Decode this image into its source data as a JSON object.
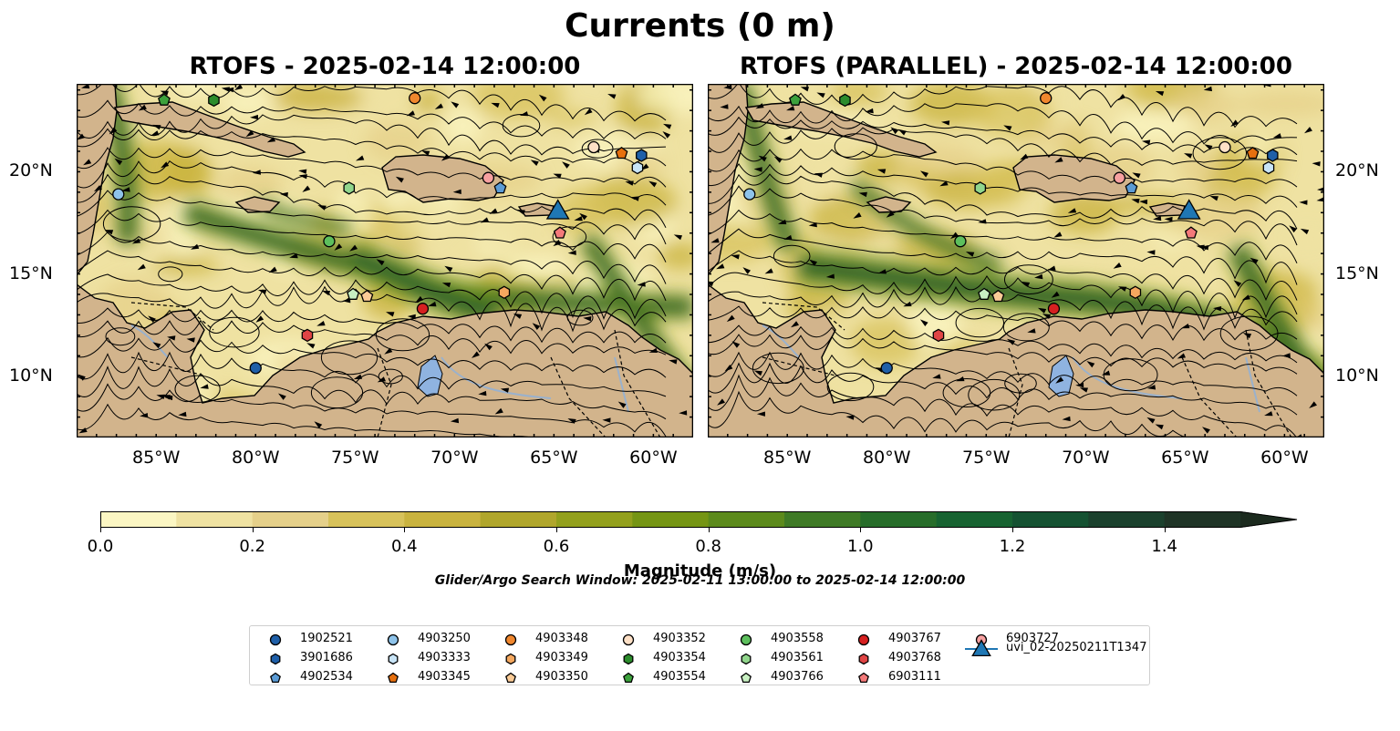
{
  "figure": {
    "suptitle": "Currents (0 m)",
    "panels": [
      {
        "title": "RTOFS - 2025-02-14 12:00:00"
      },
      {
        "title": "RTOFS (PARALLEL) - 2025-02-14 12:00:00"
      }
    ],
    "lon_ticks": [
      "85°W",
      "80°W",
      "75°W",
      "70°W",
      "65°W",
      "60°W"
    ],
    "lat_ticks": [
      "20°N",
      "15°N",
      "10°N"
    ],
    "colorbar": {
      "label": "Magnitude (m/s)",
      "ticks": [
        "0.0",
        "0.2",
        "0.4",
        "0.6",
        "0.8",
        "1.0",
        "1.2",
        "1.4"
      ],
      "colors": [
        "#fbf6c3",
        "#efe2a2",
        "#e5d08a",
        "#d7c25b",
        "#c9b33f",
        "#b0a62c",
        "#93a01d",
        "#759514",
        "#5c8a1c",
        "#3f7a26",
        "#276d2a",
        "#176331",
        "#155232",
        "#1b412d",
        "#1f3426",
        "#1b2a1e"
      ]
    },
    "search_window": "Glider/Argo Search Window: 2025-02-11 13:00:00 to 2025-02-14 12:00:00",
    "land_color": "#d2b48c",
    "lake_color": "#8fb3e0"
  },
  "chart_data": [
    {
      "type": "map",
      "title": "RTOFS - 2025-02-14 12:00:00",
      "lon_range": [
        -89,
        -58
      ],
      "lat_range": [
        7,
        24.3
      ],
      "variable": "surface current magnitude (m/s)",
      "colorbar_range": [
        0,
        1.5
      ],
      "markers": [
        {
          "id": "1902521",
          "lon": -80.0,
          "lat": 10.4
        },
        {
          "id": "3901686",
          "lon": -60.6,
          "lat": 20.8
        },
        {
          "id": "4902534",
          "lon": -67.7,
          "lat": 19.2
        },
        {
          "id": "4903250",
          "lon": -86.9,
          "lat": 18.9
        },
        {
          "id": "4903333",
          "lon": -60.8,
          "lat": 20.2
        },
        {
          "id": "4903345",
          "lon": -61.6,
          "lat": 20.9
        },
        {
          "id": "4903348",
          "lon": -72.0,
          "lat": 23.6
        },
        {
          "id": "4903349",
          "lon": -67.5,
          "lat": 14.1
        },
        {
          "id": "4903350",
          "lon": -74.4,
          "lat": 13.9
        },
        {
          "id": "4903352",
          "lon": -63.0,
          "lat": 21.2
        },
        {
          "id": "4903354",
          "lon": -82.1,
          "lat": 23.5
        },
        {
          "id": "4903554",
          "lon": -84.6,
          "lat": 23.5
        },
        {
          "id": "4903558",
          "lon": -76.3,
          "lat": 16.6
        },
        {
          "id": "4903561",
          "lon": -75.3,
          "lat": 19.2
        },
        {
          "id": "4903766",
          "lon": -75.1,
          "lat": 14.0
        },
        {
          "id": "4903767",
          "lon": -71.6,
          "lat": 13.3
        },
        {
          "id": "4903768",
          "lon": -77.4,
          "lat": 12.0
        },
        {
          "id": "6903111",
          "lon": -64.7,
          "lat": 17.0
        },
        {
          "id": "6903727",
          "lon": -68.3,
          "lat": 19.7
        },
        {
          "id": "uvi_02-20250211T1347",
          "lon": -64.8,
          "lat": 18.1
        }
      ]
    },
    {
      "type": "map",
      "title": "RTOFS (PARALLEL) - 2025-02-14 12:00:00",
      "lon_range": [
        -89,
        -58
      ],
      "lat_range": [
        7,
        24.3
      ],
      "variable": "surface current magnitude (m/s)",
      "colorbar_range": [
        0,
        1.5
      ],
      "markers": [
        {
          "id": "1902521",
          "lon": -80.0,
          "lat": 10.4
        },
        {
          "id": "3901686",
          "lon": -60.6,
          "lat": 20.8
        },
        {
          "id": "4902534",
          "lon": -67.7,
          "lat": 19.2
        },
        {
          "id": "4903250",
          "lon": -86.9,
          "lat": 18.9
        },
        {
          "id": "4903333",
          "lon": -60.8,
          "lat": 20.2
        },
        {
          "id": "4903345",
          "lon": -61.6,
          "lat": 20.9
        },
        {
          "id": "4903348",
          "lon": -72.0,
          "lat": 23.6
        },
        {
          "id": "4903349",
          "lon": -67.5,
          "lat": 14.1
        },
        {
          "id": "4903350",
          "lon": -74.4,
          "lat": 13.9
        },
        {
          "id": "4903352",
          "lon": -63.0,
          "lat": 21.2
        },
        {
          "id": "4903354",
          "lon": -82.1,
          "lat": 23.5
        },
        {
          "id": "4903554",
          "lon": -84.6,
          "lat": 23.5
        },
        {
          "id": "4903558",
          "lon": -76.3,
          "lat": 16.6
        },
        {
          "id": "4903561",
          "lon": -75.3,
          "lat": 19.2
        },
        {
          "id": "4903766",
          "lon": -75.1,
          "lat": 14.0
        },
        {
          "id": "4903767",
          "lon": -71.6,
          "lat": 13.3
        },
        {
          "id": "4903768",
          "lon": -77.4,
          "lat": 12.0
        },
        {
          "id": "6903111",
          "lon": -64.7,
          "lat": 17.0
        },
        {
          "id": "6903727",
          "lon": -68.3,
          "lat": 19.7
        },
        {
          "id": "uvi_02-20250211T1347",
          "lon": -64.8,
          "lat": 18.1
        }
      ]
    }
  ],
  "legend": [
    {
      "label": "1902521",
      "marker": "circle",
      "color": "#1f5fa8"
    },
    {
      "label": "3901686",
      "marker": "hexagon",
      "color": "#1f5fa8"
    },
    {
      "label": "4902534",
      "marker": "pentagon",
      "color": "#5b9bd5"
    },
    {
      "label": "4903250",
      "marker": "circle",
      "color": "#8ec3ea"
    },
    {
      "label": "4903333",
      "marker": "hexagon",
      "color": "#c8e4f7"
    },
    {
      "label": "4903345",
      "marker": "pentagon",
      "color": "#e6700f"
    },
    {
      "label": "4903348",
      "marker": "circle",
      "color": "#f0872e"
    },
    {
      "label": "4903349",
      "marker": "hexagon",
      "color": "#f5a85f"
    },
    {
      "label": "4903350",
      "marker": "pentagon",
      "color": "#fbcb96"
    },
    {
      "label": "4903352",
      "marker": "circle",
      "color": "#fde0c6"
    },
    {
      "label": "4903354",
      "marker": "hexagon",
      "color": "#2c8c2c"
    },
    {
      "label": "4903554",
      "marker": "pentagon",
      "color": "#3ca13c"
    },
    {
      "label": "4903558",
      "marker": "circle",
      "color": "#5dbf5d"
    },
    {
      "label": "4903561",
      "marker": "hexagon",
      "color": "#91d68c"
    },
    {
      "label": "4903766",
      "marker": "pentagon",
      "color": "#c8f0c2"
    },
    {
      "label": "4903767",
      "marker": "circle",
      "color": "#d62020"
    },
    {
      "label": "4903768",
      "marker": "hexagon",
      "color": "#e04545"
    },
    {
      "label": "6903111",
      "marker": "pentagon",
      "color": "#f47a7a"
    },
    {
      "label": "6903727",
      "marker": "circle",
      "color": "#f7a0a0"
    },
    {
      "label": "uvi_02-20250211T1347",
      "marker": "triangle",
      "color": "#1f77b4"
    }
  ]
}
